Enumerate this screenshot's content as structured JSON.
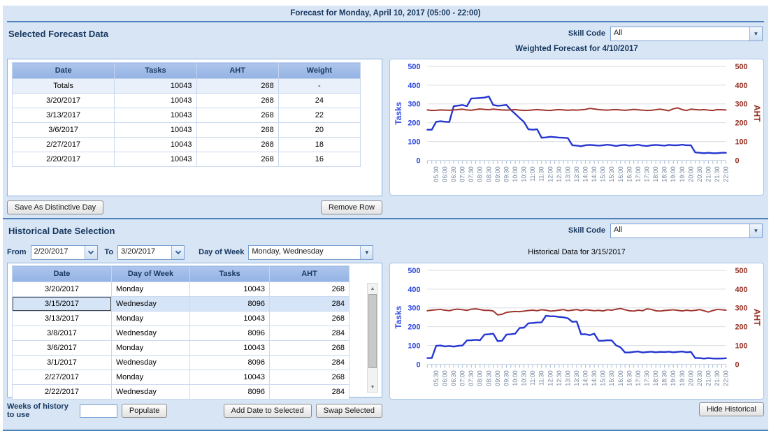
{
  "header": {
    "title": "Forecast for Monday, April 10, 2017 (05:00 - 22:00)"
  },
  "forecast_section": {
    "title": "Selected Forecast Data",
    "skill_code_label": "Skill Code",
    "skill_code_value": "All",
    "chart_title": "Weighted Forecast for 4/10/2017",
    "table": {
      "columns": [
        "Date",
        "Tasks",
        "AHT",
        "Weight"
      ],
      "rows": [
        [
          "Totals",
          "10043",
          "268",
          "-"
        ],
        [
          "3/20/2017",
          "10043",
          "268",
          "24"
        ],
        [
          "3/13/2017",
          "10043",
          "268",
          "22"
        ],
        [
          "3/6/2017",
          "10043",
          "268",
          "20"
        ],
        [
          "2/27/2017",
          "10043",
          "268",
          "18"
        ],
        [
          "2/20/2017",
          "10043",
          "268",
          "16"
        ]
      ]
    },
    "buttons": {
      "save_distinctive": "Save As Distinctive Day",
      "remove_row": "Remove Row"
    }
  },
  "historical_section": {
    "title": "Historical Date Selection",
    "skill_code_label": "Skill Code",
    "skill_code_value": "All",
    "from_label": "From",
    "from_value": "2/20/2017",
    "to_label": "To",
    "to_value": "3/20/2017",
    "dow_label": "Day of Week",
    "dow_value": "Monday, Wednesday",
    "chart_title": "Historical Data for 3/15/2017",
    "table": {
      "columns": [
        "Date",
        "Day of Week",
        "Tasks",
        "AHT"
      ],
      "rows": [
        [
          "3/20/2017",
          "Monday",
          "10043",
          "268"
        ],
        [
          "3/15/2017",
          "Wednesday",
          "8096",
          "284"
        ],
        [
          "3/13/2017",
          "Monday",
          "10043",
          "268"
        ],
        [
          "3/8/2017",
          "Wednesday",
          "8096",
          "284"
        ],
        [
          "3/6/2017",
          "Monday",
          "10043",
          "268"
        ],
        [
          "3/1/2017",
          "Wednesday",
          "8096",
          "284"
        ],
        [
          "2/27/2017",
          "Monday",
          "10043",
          "268"
        ],
        [
          "2/22/2017",
          "Wednesday",
          "8096",
          "284"
        ]
      ],
      "selected_row_index": 1
    },
    "weeks_label": "Weeks of history to use",
    "weeks_value": "",
    "buttons": {
      "populate": "Populate",
      "add_date": "Add Date to Selected",
      "swap": "Swap Selected",
      "hide": "Hide Historical"
    }
  },
  "chart_data": [
    {
      "type": "line",
      "title": "Weighted Forecast for 4/10/2017",
      "ylabel_left": "Tasks",
      "ylabel_right": "AHT",
      "ylim": [
        0,
        500
      ],
      "y_ticks": [
        0,
        100,
        200,
        300,
        400,
        500
      ],
      "x_start": "05:00",
      "x_step_minutes": 15,
      "x_labels": [
        "05:30",
        "06:00",
        "06:30",
        "07:00",
        "07:30",
        "08:00",
        "08:30",
        "09:00",
        "09:30",
        "10:00",
        "10:30",
        "11:00",
        "11:30",
        "12:00",
        "12:30",
        "13:00",
        "13:30",
        "14:00",
        "14:30",
        "15:00",
        "15:30",
        "16:00",
        "16:30",
        "17:00",
        "17:30",
        "18:00",
        "18:30",
        "19:00",
        "19:30",
        "20:00",
        "20:30",
        "21:00",
        "21:30",
        "22:00"
      ],
      "series": [
        {
          "name": "Tasks",
          "color": "#2536d0",
          "width": 2.4,
          "values": [
            163,
            163,
            205,
            208,
            205,
            204,
            288,
            291,
            294,
            288,
            329,
            330,
            332,
            334,
            340,
            294,
            290,
            292,
            295,
            268,
            247,
            225,
            204,
            165,
            163,
            165,
            120,
            122,
            125,
            123,
            121,
            120,
            118,
            80,
            78,
            75,
            80,
            82,
            80,
            78,
            80,
            83,
            80,
            76,
            80,
            82,
            78,
            80,
            83,
            78,
            76,
            80,
            82,
            80,
            78,
            82,
            80,
            80,
            83,
            80,
            80,
            42,
            40,
            38,
            40,
            38,
            38,
            40,
            40
          ]
        },
        {
          "name": "AHT",
          "color": "#a0362f",
          "width": 2,
          "values": [
            268,
            265,
            266,
            268,
            267,
            266,
            268,
            270,
            272,
            268,
            266,
            270,
            273,
            271,
            269,
            272,
            270,
            268,
            267,
            268,
            270,
            267,
            265,
            266,
            268,
            270,
            268,
            266,
            265,
            268,
            270,
            268,
            266,
            268,
            267,
            269,
            271,
            276,
            273,
            270,
            268,
            267,
            269,
            270,
            268,
            266,
            268,
            271,
            269,
            267,
            265,
            266,
            269,
            272,
            268,
            264,
            274,
            279,
            270,
            265,
            272,
            270,
            268,
            270,
            267,
            265,
            270,
            269,
            268
          ]
        }
      ]
    },
    {
      "type": "line",
      "title": "Historical Data for 3/15/2017",
      "ylabel_left": "Tasks",
      "ylabel_right": "AHT",
      "ylim": [
        0,
        500
      ],
      "y_ticks": [
        0,
        100,
        200,
        300,
        400,
        500
      ],
      "x_start": "05:00",
      "x_step_minutes": 15,
      "x_labels": [
        "05:30",
        "06:00",
        "06:30",
        "07:00",
        "07:30",
        "08:00",
        "08:30",
        "09:00",
        "09:30",
        "10:00",
        "10:30",
        "11:00",
        "11:30",
        "12:00",
        "12:30",
        "13:00",
        "13:30",
        "14:00",
        "14:30",
        "15:00",
        "15:30",
        "16:00",
        "16:30",
        "17:00",
        "17:30",
        "18:00",
        "18:30",
        "19:00",
        "19:30",
        "20:00",
        "20:30",
        "21:00",
        "21:30",
        "22:00"
      ],
      "series": [
        {
          "name": "Tasks",
          "color": "#2536d0",
          "width": 2.4,
          "values": [
            33,
            33,
            98,
            100,
            95,
            97,
            94,
            98,
            100,
            127,
            128,
            130,
            128,
            158,
            160,
            163,
            123,
            125,
            158,
            160,
            163,
            193,
            195,
            218,
            220,
            222,
            223,
            258,
            256,
            255,
            252,
            250,
            245,
            226,
            228,
            160,
            160,
            155,
            163,
            125,
            125,
            128,
            127,
            100,
            90,
            63,
            63,
            66,
            68,
            63,
            65,
            67,
            64,
            66,
            65,
            67,
            64,
            66,
            68,
            64,
            66,
            33,
            33,
            30,
            33,
            31,
            30,
            31,
            32
          ]
        },
        {
          "name": "AHT",
          "color": "#a0362f",
          "width": 2,
          "values": [
            285,
            288,
            290,
            292,
            288,
            285,
            291,
            293,
            290,
            287,
            293,
            295,
            291,
            287,
            287,
            284,
            263,
            266,
            276,
            279,
            281,
            280,
            283,
            286,
            288,
            285,
            290,
            288,
            283,
            285,
            288,
            291,
            285,
            288,
            291,
            286,
            290,
            288,
            285,
            287,
            284,
            290,
            288,
            293,
            297,
            290,
            285,
            283,
            288,
            285,
            295,
            292,
            285,
            283,
            286,
            288,
            290,
            287,
            284,
            288,
            285,
            287,
            291,
            285,
            278,
            286,
            292,
            290,
            288
          ]
        }
      ]
    }
  ],
  "colors": {
    "accent_navy": "#17375e",
    "divider_blue": "#4f81bd",
    "panel_bg": "#d8e5f5",
    "table_header_bg": "#9db9e8",
    "tasks_line": "#2536d0",
    "aht_line": "#a0362f"
  }
}
